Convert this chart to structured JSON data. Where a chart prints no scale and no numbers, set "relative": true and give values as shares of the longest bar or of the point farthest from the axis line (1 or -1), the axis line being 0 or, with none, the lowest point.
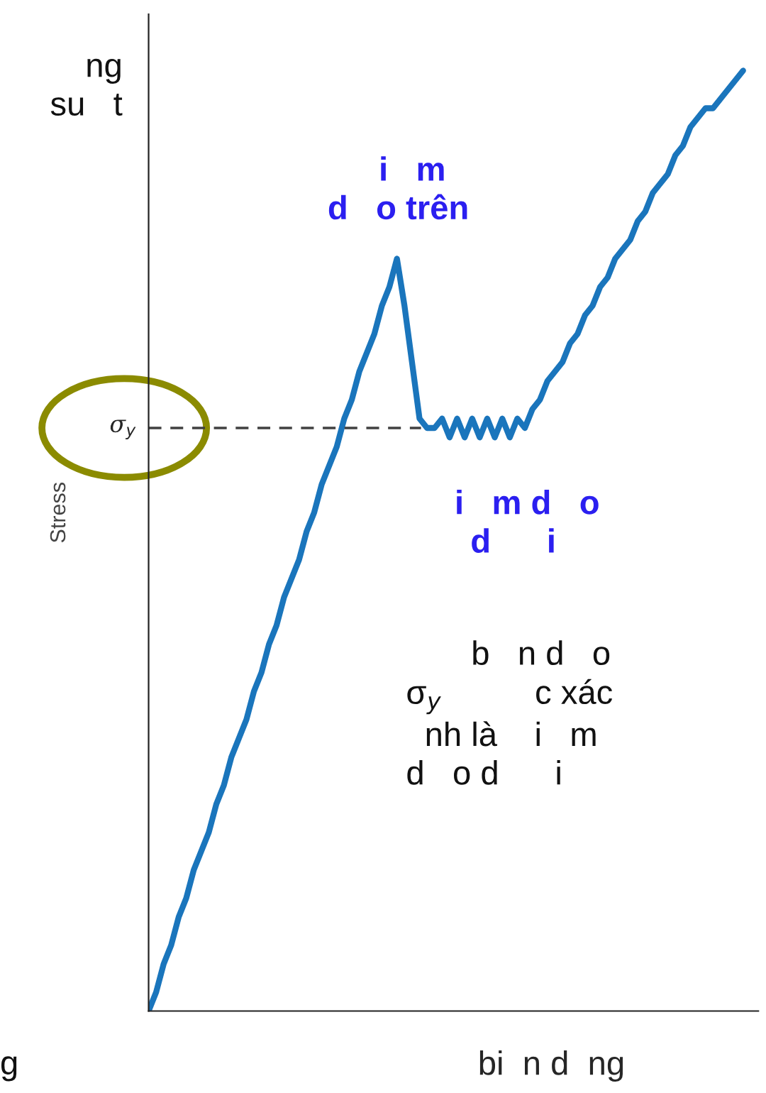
{
  "chart_data": {
    "type": "line",
    "relative": true,
    "ylabel": "Stress",
    "xlabel": "bi  n d  ng",
    "marker": "none",
    "line_style": "solid",
    "categories": [
      null,
      null,
      null,
      null,
      null,
      null,
      null,
      null,
      null,
      null,
      null,
      null,
      null,
      null,
      null,
      null,
      null,
      null,
      null,
      null,
      null,
      null,
      null,
      null,
      null,
      null,
      null,
      null,
      null,
      null,
      null,
      null,
      null,
      null,
      null,
      null,
      null,
      null,
      null,
      null,
      null,
      null,
      null,
      null,
      null,
      null,
      null,
      null,
      null,
      null,
      null,
      null,
      null,
      null,
      null,
      null,
      null,
      null,
      null,
      null,
      null,
      null,
      null,
      null,
      null,
      null,
      null,
      null,
      null,
      null,
      null,
      null,
      null,
      null,
      null,
      null,
      null,
      null,
      null,
      null
    ],
    "series": [
      {
        "color": "#1a75bc",
        "values": [
          0,
          0.02,
          0.05,
          0.07,
          0.1,
          0.12,
          0.15,
          0.17,
          0.19,
          0.22,
          0.24,
          0.27,
          0.29,
          0.31,
          0.34,
          0.36,
          0.39,
          0.41,
          0.44,
          0.46,
          0.48,
          0.51,
          0.53,
          0.56,
          0.58,
          0.6,
          0.63,
          0.65,
          0.68,
          0.7,
          0.72,
          0.75,
          0.77,
          0.8,
          0.75,
          0.69,
          0.63,
          0.62,
          0.62,
          0.63,
          0.61,
          0.63,
          0.61,
          0.63,
          0.61,
          0.63,
          0.61,
          0.63,
          0.61,
          0.63,
          0.62,
          0.64,
          0.65,
          0.67,
          0.68,
          0.69,
          0.71,
          0.72,
          0.74,
          0.75,
          0.77,
          0.78,
          0.8,
          0.81,
          0.82,
          0.84,
          0.85,
          0.87,
          0.88,
          0.89,
          0.91,
          0.92,
          0.94,
          0.95,
          0.96,
          0.96,
          0.97,
          0.98,
          0.99,
          1
        ]
      }
    ],
    "ref_lines": [
      {
        "axis": "y",
        "value": 0.62,
        "label": "σ$_{y}$",
        "color": "#404040",
        "line_style": "dashed"
      }
    ],
    "annotations": [
      "   ng\nsu   t",
      "g",
      "   i   m\nd   o trên",
      "   i   m d   o\nd      i",
      "       b   n d   o\nσ$_{y}$          c xác\n  nh là    i   m\nd   o d      i"
    ]
  }
}
